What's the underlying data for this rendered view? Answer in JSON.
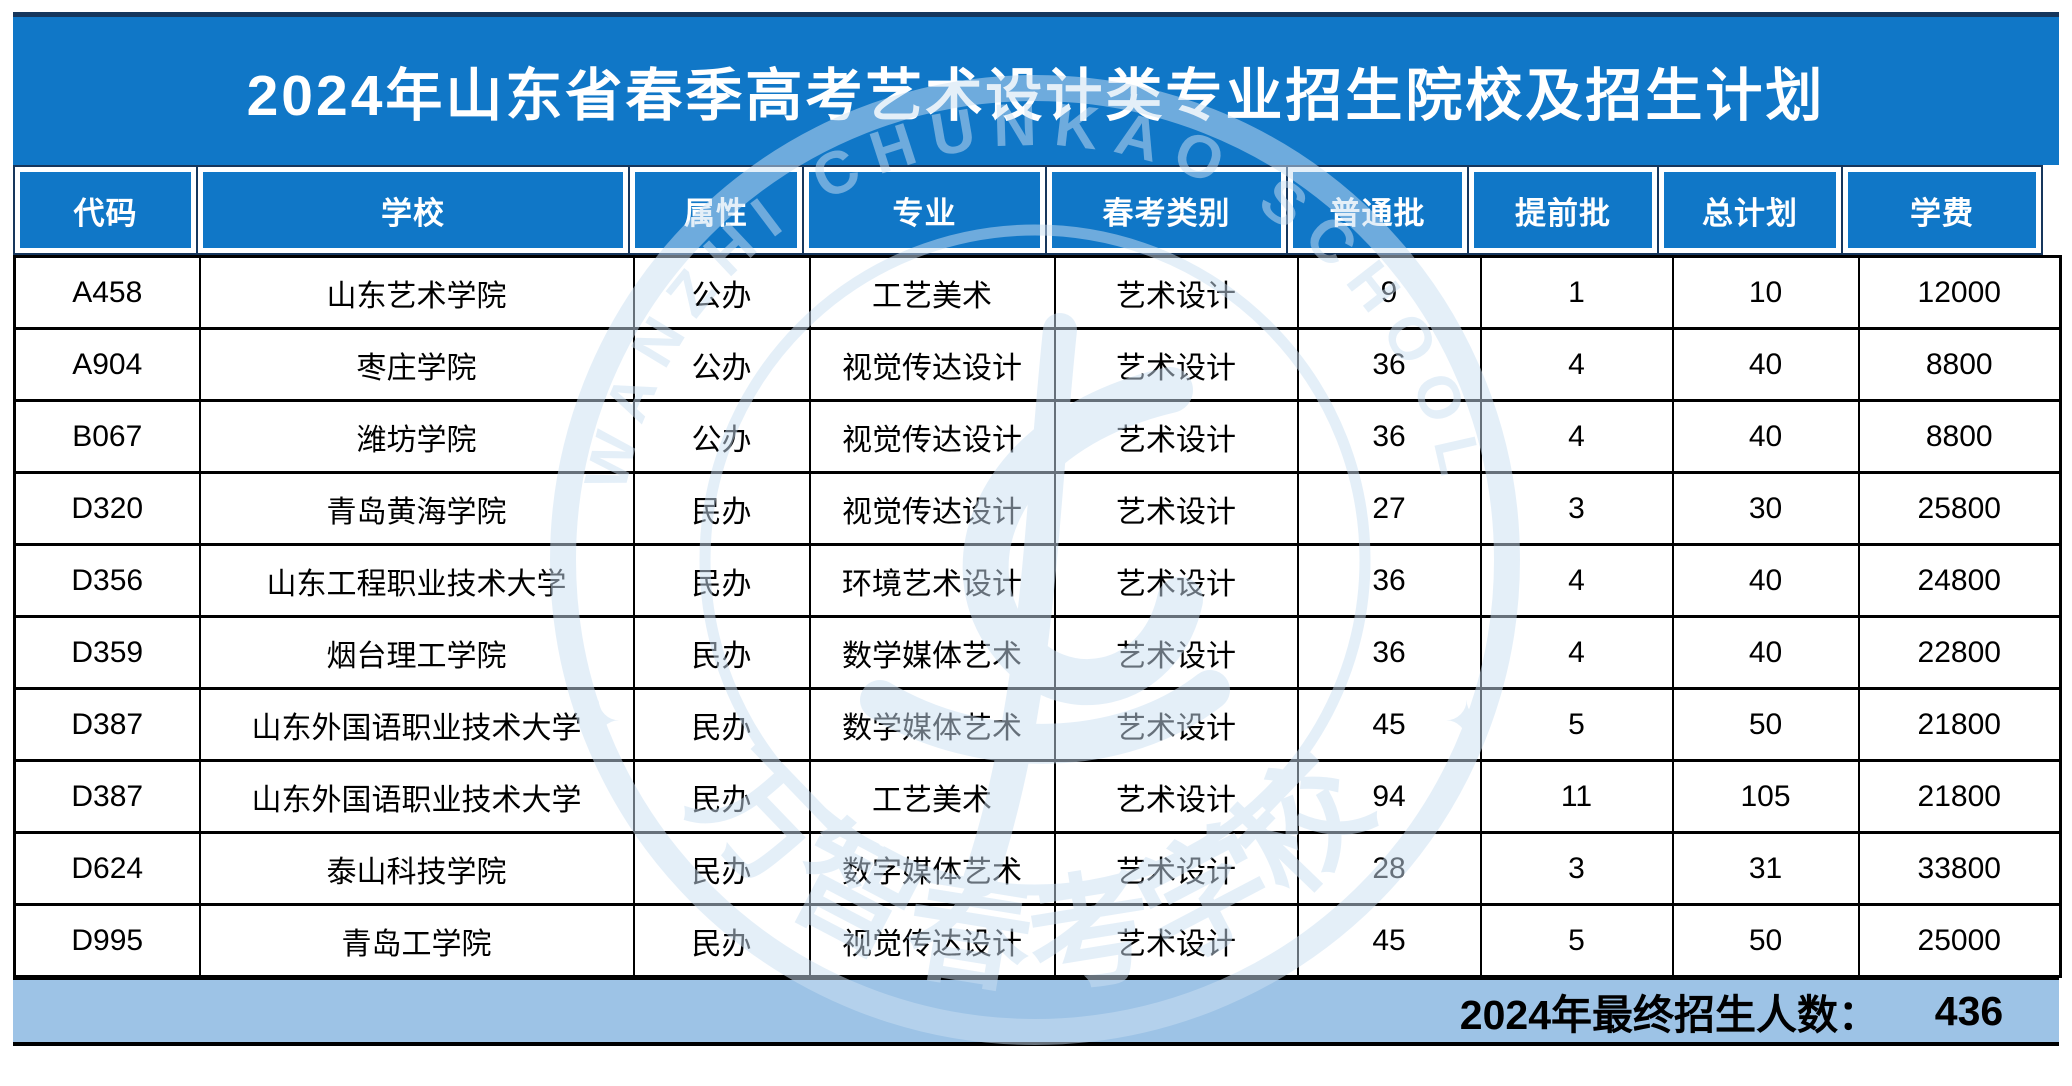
{
  "title": "2024年山东省春季高考艺术设计类专业招生院校及招生计划",
  "theme": {
    "header_blue": "#1077C7",
    "navy_line": "#16365C",
    "footer_blue": "#9DC3E6",
    "border_black": "#000000",
    "watermark_blue": "#CBE0F3"
  },
  "watermark": {
    "arc_text": "WANZHI CHUNKAO SCHOOL",
    "bottom_text": "万智春考学校",
    "star": "✦"
  },
  "table": {
    "columns": [
      {
        "label": "代码"
      },
      {
        "label": "学校"
      },
      {
        "label": "属性"
      },
      {
        "label": "专业"
      },
      {
        "label": "春考类别"
      },
      {
        "label": "普通批"
      },
      {
        "label": "提前批"
      },
      {
        "label": "总计划"
      },
      {
        "label": "学费"
      }
    ],
    "rows": [
      [
        "A458",
        "山东艺术学院",
        "公办",
        "工艺美术",
        "艺术设计",
        "9",
        "1",
        "10",
        "12000"
      ],
      [
        "A904",
        "枣庄学院",
        "公办",
        "视觉传达设计",
        "艺术设计",
        "36",
        "4",
        "40",
        "8800"
      ],
      [
        "B067",
        "潍坊学院",
        "公办",
        "视觉传达设计",
        "艺术设计",
        "36",
        "4",
        "40",
        "8800"
      ],
      [
        "D320",
        "青岛黄海学院",
        "民办",
        "视觉传达设计",
        "艺术设计",
        "27",
        "3",
        "30",
        "25800"
      ],
      [
        "D356",
        "山东工程职业技术大学",
        "民办",
        "环境艺术设计",
        "艺术设计",
        "36",
        "4",
        "40",
        "24800"
      ],
      [
        "D359",
        "烟台理工学院",
        "民办",
        "数学媒体艺术",
        "艺术设计",
        "36",
        "4",
        "40",
        "22800"
      ],
      [
        "D387",
        "山东外国语职业技术大学",
        "民办",
        "数学媒体艺术",
        "艺术设计",
        "45",
        "5",
        "50",
        "21800"
      ],
      [
        "D387",
        "山东外国语职业技术大学",
        "民办",
        "工艺美术",
        "艺术设计",
        "94",
        "11",
        "105",
        "21800"
      ],
      [
        "D624",
        "泰山科技学院",
        "民办",
        "数字媒体艺术",
        "艺术设计",
        "28",
        "3",
        "31",
        "33800"
      ],
      [
        "D995",
        "青岛工学院",
        "民办",
        "视觉传达设计",
        "艺术设计",
        "45",
        "5",
        "50",
        "25000"
      ]
    ]
  },
  "footer": {
    "label": "2024年最终招生人数：",
    "total": "436"
  }
}
